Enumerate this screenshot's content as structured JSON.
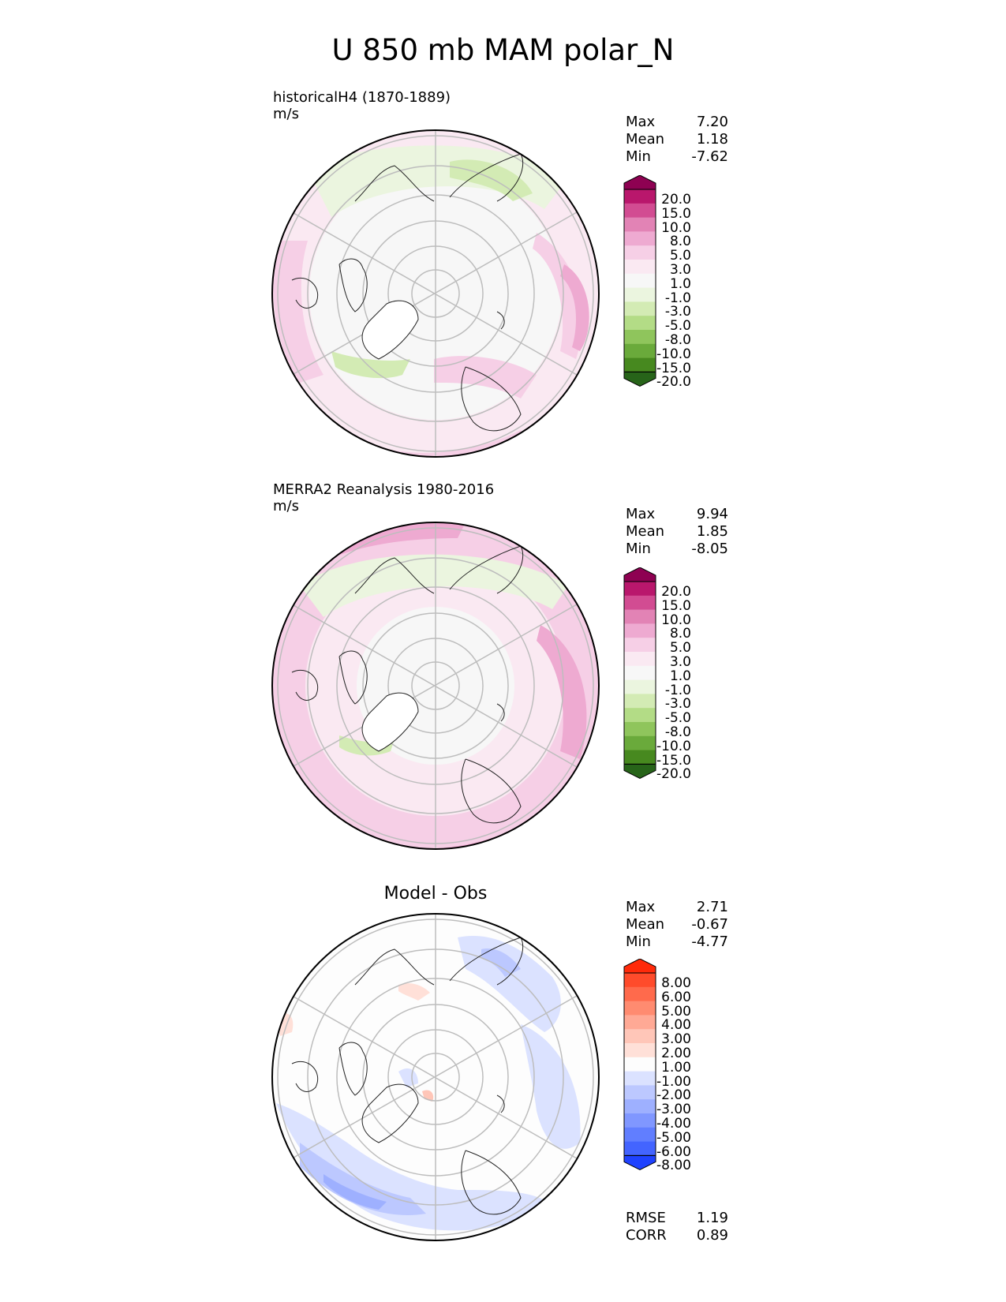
{
  "figure": {
    "title": "U 850 mb MAM polar_N"
  },
  "panels": [
    {
      "id": "model",
      "title": "historicalH4 (1870-1889)",
      "units": "m/s",
      "stats": [
        {
          "label": "Max",
          "value": "7.20"
        },
        {
          "label": "Mean",
          "value": "1.18"
        },
        {
          "label": "Min",
          "value": "-7.62"
        }
      ],
      "colorbar": {
        "levels": [
          "20.0",
          "15.0",
          "10.0",
          "8.0",
          "5.0",
          "3.0",
          "1.0",
          "-1.0",
          "-3.0",
          "-5.0",
          "-8.0",
          "-10.0",
          "-15.0",
          "-20.0"
        ],
        "colors": [
          "#8e0152",
          "#b9176c",
          "#d24c92",
          "#e283b5",
          "#eeaad1",
          "#f6cfe6",
          "#fae9f2",
          "#f7f7f7",
          "#ebf5df",
          "#d3ebb4",
          "#b3dc86",
          "#8fc55c",
          "#6aaa3b",
          "#47891f",
          "#276419"
        ]
      }
    },
    {
      "id": "obs",
      "title": "MERRA2 Reanalysis 1980-2016",
      "units": "m/s",
      "stats": [
        {
          "label": "Max",
          "value": "9.94"
        },
        {
          "label": "Mean",
          "value": "1.85"
        },
        {
          "label": "Min",
          "value": "-8.05"
        }
      ],
      "colorbar": {
        "levels": [
          "20.0",
          "15.0",
          "10.0",
          "8.0",
          "5.0",
          "3.0",
          "1.0",
          "-1.0",
          "-3.0",
          "-5.0",
          "-8.0",
          "-10.0",
          "-15.0",
          "-20.0"
        ],
        "colors": [
          "#8e0152",
          "#b9176c",
          "#d24c92",
          "#e283b5",
          "#eeaad1",
          "#f6cfe6",
          "#fae9f2",
          "#f7f7f7",
          "#ebf5df",
          "#d3ebb4",
          "#b3dc86",
          "#8fc55c",
          "#6aaa3b",
          "#47891f",
          "#276419"
        ]
      }
    },
    {
      "id": "diff",
      "title": "Model - Obs",
      "units": "",
      "stats": [
        {
          "label": "Max",
          "value": "2.71"
        },
        {
          "label": "Mean",
          "value": "-0.67"
        },
        {
          "label": "Min",
          "value": "-4.77"
        }
      ],
      "metrics": [
        {
          "label": "RMSE",
          "value": "1.19"
        },
        {
          "label": "CORR",
          "value": "0.89"
        }
      ],
      "colorbar": {
        "levels": [
          "8.00",
          "6.00",
          "5.00",
          "4.00",
          "3.00",
          "2.00",
          "1.00",
          "-1.00",
          "-2.00",
          "-3.00",
          "-4.00",
          "-5.00",
          "-6.00",
          "-8.00"
        ],
        "colors": [
          "#ff2a0a",
          "#ff4b2b",
          "#ff6a4c",
          "#ff8b70",
          "#ffa995",
          "#ffc6b8",
          "#ffe0d8",
          "#fdfdfd",
          "#dbe2ff",
          "#bcc8ff",
          "#9eb0ff",
          "#8097ff",
          "#617eff",
          "#4364ff",
          "#1f42ff"
        ]
      }
    }
  ]
}
